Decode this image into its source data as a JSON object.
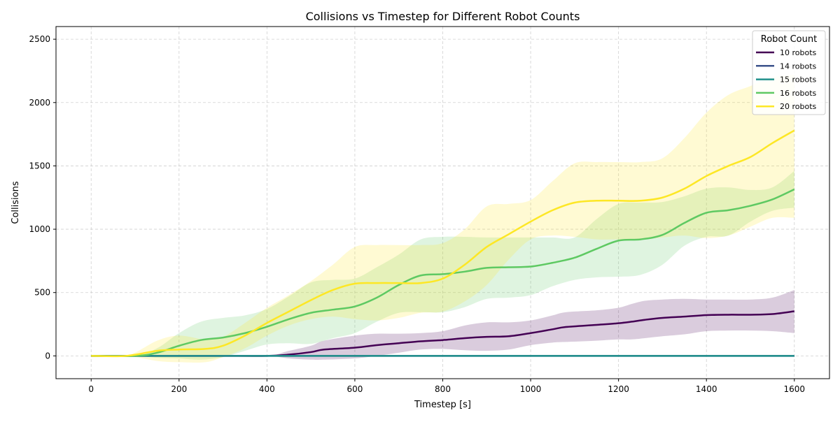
{
  "chart_data": {
    "type": "line",
    "title": "Collisions vs Timestep for Different Robot Counts",
    "xlabel": "Timestep [s]",
    "ylabel": "Collisions",
    "xlim": [
      -80,
      1680
    ],
    "ylim": [
      -180,
      2600
    ],
    "xticks": [
      0,
      200,
      400,
      600,
      800,
      1000,
      1200,
      1400,
      1600
    ],
    "yticks": [
      0,
      500,
      1000,
      1500,
      2000,
      2500
    ],
    "grid": true,
    "legend": {
      "title": "Robot Count",
      "placement": "top-right"
    },
    "series": [
      {
        "name": "10 robots",
        "color": "#440154",
        "x": [
          0,
          100,
          200,
          300,
          400,
          450,
          500,
          530,
          600,
          650,
          700,
          750,
          800,
          850,
          900,
          950,
          1000,
          1050,
          1080,
          1150,
          1200,
          1230,
          1260,
          1300,
          1350,
          1400,
          1450,
          1500,
          1550,
          1600
        ],
        "mean": [
          0,
          0,
          0,
          0,
          0,
          10,
          30,
          50,
          65,
          85,
          100,
          115,
          125,
          140,
          150,
          155,
          180,
          210,
          228,
          245,
          258,
          270,
          285,
          300,
          310,
          322,
          325,
          325,
          330,
          352
        ],
        "upper": [
          0,
          0,
          0,
          0,
          0,
          40,
          80,
          120,
          160,
          175,
          175,
          180,
          195,
          240,
          265,
          265,
          280,
          320,
          345,
          360,
          380,
          410,
          435,
          445,
          450,
          445,
          445,
          445,
          460,
          520
        ],
        "lower": [
          0,
          0,
          0,
          0,
          0,
          -20,
          -30,
          -30,
          -20,
          0,
          25,
          50,
          55,
          45,
          40,
          50,
          85,
          105,
          110,
          120,
          130,
          130,
          140,
          155,
          170,
          195,
          200,
          200,
          195,
          180
        ]
      },
      {
        "name": "14 robots",
        "color": "#3b528b",
        "x": [
          0,
          400,
          800,
          1200,
          1600
        ],
        "mean": [
          0,
          0,
          0,
          0,
          0
        ],
        "upper": [
          0,
          0,
          0,
          0,
          0
        ],
        "lower": [
          0,
          0,
          0,
          0,
          0
        ]
      },
      {
        "name": "15 robots",
        "color": "#21918c",
        "x": [
          0,
          400,
          800,
          1200,
          1600
        ],
        "mean": [
          0,
          0,
          0,
          0,
          0
        ],
        "upper": [
          0,
          0,
          0,
          0,
          0
        ],
        "lower": [
          0,
          0,
          0,
          0,
          0
        ]
      },
      {
        "name": "16 robots",
        "color": "#5ec962",
        "x": [
          0,
          100,
          150,
          200,
          250,
          300,
          350,
          400,
          450,
          500,
          550,
          600,
          650,
          700,
          750,
          800,
          850,
          900,
          950,
          1000,
          1050,
          1100,
          1150,
          1200,
          1250,
          1300,
          1350,
          1400,
          1450,
          1500,
          1550,
          1600
        ],
        "mean": [
          0,
          0,
          25,
          80,
          125,
          145,
          180,
          230,
          290,
          340,
          365,
          390,
          460,
          560,
          635,
          645,
          665,
          695,
          700,
          705,
          735,
          775,
          845,
          910,
          920,
          955,
          1050,
          1130,
          1150,
          1185,
          1235,
          1315
        ],
        "upper": [
          0,
          0,
          60,
          180,
          270,
          300,
          320,
          370,
          470,
          580,
          600,
          610,
          700,
          800,
          920,
          940,
          940,
          935,
          935,
          935,
          935,
          935,
          1080,
          1200,
          1210,
          1215,
          1260,
          1320,
          1330,
          1310,
          1330,
          1460
        ],
        "lower": [
          0,
          0,
          -15,
          -20,
          -30,
          -10,
          40,
          90,
          100,
          95,
          140,
          180,
          270,
          340,
          345,
          345,
          385,
          450,
          460,
          480,
          550,
          600,
          620,
          625,
          640,
          720,
          870,
          940,
          950,
          1060,
          1145,
          1170
        ]
      },
      {
        "name": "20 robots",
        "color": "#fde725",
        "x": [
          0,
          80,
          150,
          200,
          260,
          300,
          350,
          400,
          450,
          500,
          550,
          600,
          650,
          700,
          750,
          800,
          850,
          900,
          950,
          1000,
          1050,
          1100,
          1150,
          1200,
          1250,
          1300,
          1350,
          1400,
          1450,
          1500,
          1550,
          1600
        ],
        "mean": [
          0,
          0,
          40,
          50,
          55,
          80,
          160,
          260,
          350,
          440,
          520,
          570,
          575,
          575,
          575,
          610,
          720,
          860,
          960,
          1060,
          1150,
          1210,
          1225,
          1225,
          1225,
          1250,
          1320,
          1420,
          1500,
          1570,
          1680,
          1780
        ],
        "upper": [
          0,
          0,
          120,
          160,
          130,
          150,
          260,
          380,
          480,
          590,
          720,
          860,
          875,
          875,
          875,
          890,
          1000,
          1180,
          1200,
          1230,
          1380,
          1520,
          1530,
          1530,
          1530,
          1560,
          1720,
          1920,
          2060,
          2130,
          2200,
          2220
        ],
        "lower": [
          0,
          0,
          -40,
          -50,
          -50,
          -10,
          60,
          160,
          240,
          290,
          310,
          290,
          280,
          300,
          340,
          350,
          430,
          560,
          760,
          920,
          950,
          940,
          920,
          920,
          920,
          935,
          950,
          930,
          950,
          1020,
          1090,
          1090
        ]
      }
    ]
  }
}
